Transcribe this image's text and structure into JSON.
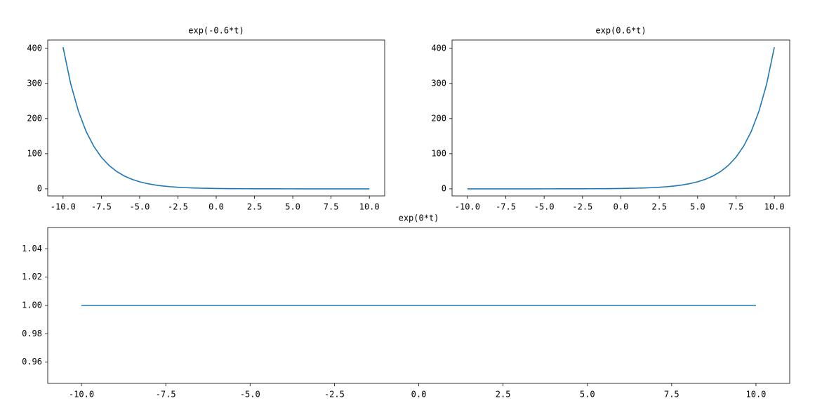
{
  "chart_data": [
    {
      "type": "line",
      "title": "exp(-0.6*t)",
      "x": [
        -10,
        -9.5,
        -9,
        -8.5,
        -8,
        -7.5,
        -7,
        -6.5,
        -6,
        -5.5,
        -5,
        -4.5,
        -4,
        -3.5,
        -3,
        -2.5,
        -2,
        -1.5,
        -1,
        -0.5,
        0,
        0.5,
        1,
        1.5,
        2,
        2.5,
        3,
        3.5,
        4,
        4.5,
        5,
        5.5,
        6,
        6.5,
        7,
        7.5,
        8,
        8.5,
        9,
        9.5,
        10
      ],
      "values": [
        403.4,
        298.9,
        221.4,
        164.0,
        121.5,
        90.02,
        66.69,
        49.4,
        36.6,
        27.11,
        20.09,
        14.88,
        11.02,
        8.166,
        6.05,
        4.482,
        3.32,
        2.46,
        1.822,
        1.35,
        1,
        0.741,
        0.549,
        0.407,
        0.301,
        0.223,
        0.165,
        0.122,
        0.091,
        0.067,
        0.05,
        0.037,
        0.027,
        0.02,
        0.015,
        0.011,
        0.008,
        0.006,
        0.005,
        0.003,
        0.002
      ],
      "color": "#1f77b4",
      "xlim": [
        -11,
        11
      ],
      "xticks": [
        {
          "value": -10,
          "label": "-10.0"
        },
        -7.5,
        {
          "value": -5,
          "label": "-5.0"
        },
        -2.5,
        {
          "value": 0,
          "label": "0.0"
        },
        2.5,
        {
          "value": 5,
          "label": "5.0"
        },
        7.5,
        {
          "value": 10,
          "label": "10.0"
        }
      ],
      "ylim": [
        -20.17,
        423.6
      ],
      "yticks": [
        0,
        100,
        200,
        300,
        400
      ]
    },
    {
      "type": "line",
      "title": "exp(0.6*t)",
      "x": [
        -10,
        -9.5,
        -9,
        -8.5,
        -8,
        -7.5,
        -7,
        -6.5,
        -6,
        -5.5,
        -5,
        -4.5,
        -4,
        -3.5,
        -3,
        -2.5,
        -2,
        -1.5,
        -1,
        -0.5,
        0,
        0.5,
        1,
        1.5,
        2,
        2.5,
        3,
        3.5,
        4,
        4.5,
        5,
        5.5,
        6,
        6.5,
        7,
        7.5,
        8,
        8.5,
        9,
        9.5,
        10
      ],
      "values": [
        0.002,
        0.003,
        0.005,
        0.006,
        0.008,
        0.011,
        0.015,
        0.02,
        0.027,
        0.037,
        0.05,
        0.067,
        0.091,
        0.122,
        0.165,
        0.223,
        0.301,
        0.407,
        0.549,
        0.741,
        1,
        1.35,
        1.822,
        2.46,
        3.32,
        4.482,
        6.05,
        8.166,
        11.02,
        14.88,
        20.09,
        27.11,
        36.6,
        49.4,
        66.69,
        90.02,
        121.5,
        164.0,
        221.4,
        298.9,
        403.4
      ],
      "color": "#1f77b4",
      "xlim": [
        -11,
        11
      ],
      "xticks": [
        {
          "value": -10,
          "label": "-10.0"
        },
        -7.5,
        {
          "value": -5,
          "label": "-5.0"
        },
        -2.5,
        {
          "value": 0,
          "label": "0.0"
        },
        2.5,
        {
          "value": 5,
          "label": "5.0"
        },
        7.5,
        {
          "value": 10,
          "label": "10.0"
        }
      ],
      "ylim": [
        -20.17,
        423.6
      ],
      "yticks": [
        0,
        100,
        200,
        300,
        400
      ]
    },
    {
      "type": "line",
      "title": "exp(0*t)",
      "x": [
        -10,
        10
      ],
      "values": [
        1,
        1
      ],
      "color": "#1f77b4",
      "xlim": [
        -11,
        11
      ],
      "xticks": [
        {
          "value": -10,
          "label": "-10.0"
        },
        -7.5,
        {
          "value": -5,
          "label": "-5.0"
        },
        -2.5,
        {
          "value": 0,
          "label": "0.0"
        },
        2.5,
        {
          "value": 5,
          "label": "5.0"
        },
        7.5,
        {
          "value": 10,
          "label": "10.0"
        }
      ],
      "ylim": [
        0.945,
        1.055
      ],
      "yticks": [
        0.96,
        0.98,
        {
          "value": 1,
          "label": "1.00"
        },
        1.02,
        1.04
      ]
    }
  ]
}
